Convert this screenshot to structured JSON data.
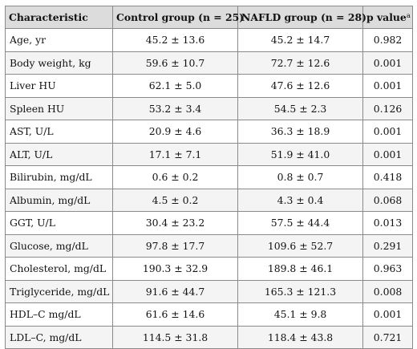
{
  "table": {
    "headers": {
      "characteristic": "Characteristic",
      "control": "Control group (n = 25)",
      "nafld": "NAFLD group (n = 28)",
      "p_value": "p value",
      "p_value_superscript": "a"
    },
    "rows": [
      {
        "characteristic": "Age, yr",
        "control": "45.2 ± 13.6",
        "nafld": "45.2 ± 14.7",
        "p_value": "0.982"
      },
      {
        "characteristic": "Body weight, kg",
        "control": "59.6 ± 10.7",
        "nafld": "72.7 ± 12.6",
        "p_value": "0.001"
      },
      {
        "characteristic": "Liver HU",
        "control": "62.1 ± 5.0",
        "nafld": "47.6 ± 12.6",
        "p_value": "0.001"
      },
      {
        "characteristic": "Spleen HU",
        "control": "53.2 ± 3.4",
        "nafld": "54.5 ± 2.3",
        "p_value": "0.126"
      },
      {
        "characteristic": "AST, U/L",
        "control": "20.9 ± 4.6",
        "nafld": "36.3 ± 18.9",
        "p_value": "0.001"
      },
      {
        "characteristic": "ALT, U/L",
        "control": "17.1 ± 7.1",
        "nafld": "51.9 ± 41.0",
        "p_value": "0.001"
      },
      {
        "characteristic": "Bilirubin, mg/dL",
        "control": "0.6 ± 0.2",
        "nafld": "0.8 ± 0.7",
        "p_value": "0.418"
      },
      {
        "characteristic": "Albumin, mg/dL",
        "control": "4.5 ± 0.2",
        "nafld": "4.3 ± 0.4",
        "p_value": "0.068"
      },
      {
        "characteristic": "GGT, U/L",
        "control": "30.4 ± 23.2",
        "nafld": "57.5 ± 44.4",
        "p_value": "0.013"
      },
      {
        "characteristic": "Glucose, mg/dL",
        "control": "97.8 ± 17.7",
        "nafld": "109.6 ± 52.7",
        "p_value": "0.291"
      },
      {
        "characteristic": "Cholesterol, mg/dL",
        "control": "190.3 ± 32.9",
        "nafld": "189.8 ± 46.1",
        "p_value": "0.963"
      },
      {
        "characteristic": "Triglyceride, mg/dL",
        "control": "91.6 ± 44.7",
        "nafld": "165.3 ± 121.3",
        "p_value": "0.008"
      },
      {
        "characteristic": "HDL–C mg/dL",
        "control": "61.6 ± 14.6",
        "nafld": "45.1 ± 9.8",
        "p_value": "0.001"
      },
      {
        "characteristic": "LDL–C, mg/dL",
        "control": "114.5 ± 31.8",
        "nafld": "118.4 ± 43.8",
        "p_value": "0.721"
      }
    ]
  }
}
